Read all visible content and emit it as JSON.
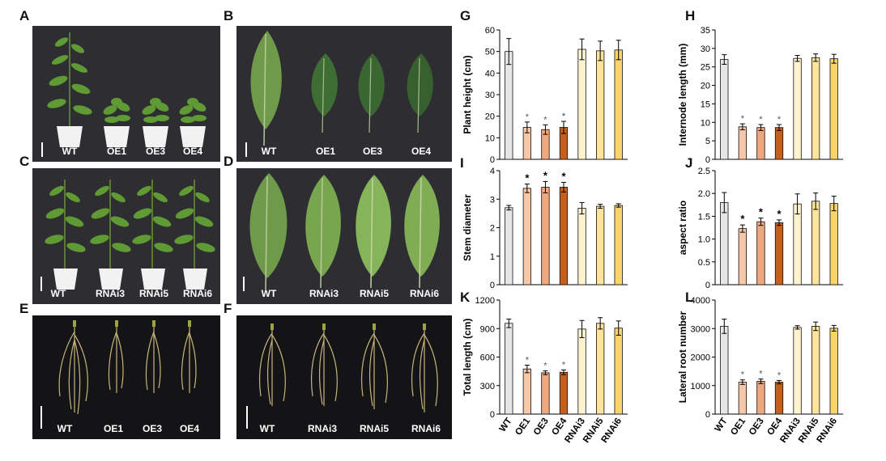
{
  "panels": {
    "A": {
      "letter": "A",
      "labels": [
        "WT",
        "OE1",
        "OE3",
        "OE4"
      ]
    },
    "B": {
      "letter": "B",
      "labels": [
        "WT",
        "OE1",
        "OE3",
        "OE4"
      ]
    },
    "C": {
      "letter": "C",
      "labels": [
        "WT",
        "RNAi3",
        "RNAi5",
        "RNAi6"
      ]
    },
    "D": {
      "letter": "D",
      "labels": [
        "WT",
        "RNAi3",
        "RNAi5",
        "RNAi6"
      ]
    },
    "E": {
      "letter": "E",
      "labels": [
        "WT",
        "OE1",
        "OE3",
        "OE4"
      ]
    },
    "F": {
      "letter": "F",
      "labels": [
        "WT",
        "RNAi3",
        "RNAi5",
        "RNAi6"
      ]
    }
  },
  "colors": {
    "WT": "#e6e6e6",
    "OE1": "#f6c7a8",
    "OE3": "#efa77d",
    "OE4": "#c4601b",
    "RNAi3": "#fff3cd",
    "RNAi5": "#fde49a",
    "RNAi6": "#f8d46a",
    "star_light": "#555555",
    "star_dark": "#1f3a8a"
  },
  "chart_data": [
    {
      "id": "G",
      "letter": "G",
      "type": "bar",
      "ylabel": "Plant height (cm)",
      "categories": [
        "WT",
        "OE1",
        "OE3",
        "OE4",
        "RNAi3",
        "RNAi5",
        "RNAi6"
      ],
      "values": [
        50,
        14.8,
        13.8,
        14.8,
        51,
        50.3,
        50.7
      ],
      "errors": [
        6,
        2.5,
        2.2,
        2.8,
        4.8,
        4.5,
        4.5
      ],
      "significant": [
        false,
        true,
        true,
        true,
        false,
        false,
        false
      ],
      "ylim": [
        0,
        60
      ],
      "yticks": [
        "0",
        "10",
        "20",
        "30",
        "40",
        "50",
        "60"
      ],
      "stars": [
        "",
        "*",
        "*",
        "*",
        "",
        "",
        ""
      ],
      "show_x": false
    },
    {
      "id": "H",
      "letter": "H",
      "type": "bar",
      "ylabel": "Internode length (mm)",
      "categories": [
        "WT",
        "OE1",
        "OE3",
        "OE4",
        "RNAi3",
        "RNAi5",
        "RNAi6"
      ],
      "values": [
        27,
        8.8,
        8.6,
        8.6,
        27.3,
        27.5,
        27.2
      ],
      "errors": [
        1.3,
        0.8,
        0.8,
        0.8,
        0.8,
        1,
        1.2
      ],
      "significant": [
        false,
        true,
        true,
        true,
        false,
        false,
        false
      ],
      "ylim": [
        0,
        35
      ],
      "yticks": [
        "0",
        "5",
        "10",
        "15",
        "20",
        "25",
        "30",
        "35"
      ],
      "stars": [
        "",
        "*",
        "*",
        "*",
        "",
        "",
        ""
      ],
      "show_x": false
    },
    {
      "id": "I",
      "letter": "I",
      "type": "bar",
      "ylabel": "Stem diameter",
      "categories": [
        "WT",
        "OE1",
        "OE3",
        "OE4",
        "RNAi3",
        "RNAi5",
        "RNAi6"
      ],
      "values": [
        2.7,
        3.38,
        3.42,
        3.42,
        2.68,
        2.75,
        2.78
      ],
      "errors": [
        0.08,
        0.15,
        0.2,
        0.17,
        0.2,
        0.07,
        0.06
      ],
      "significant": [
        false,
        true,
        true,
        true,
        false,
        false,
        false
      ],
      "ylim": [
        0,
        4
      ],
      "yticks": [
        "0",
        "1",
        "2",
        "3",
        "4"
      ],
      "stars": [
        "",
        "*",
        "*",
        "*",
        "",
        "",
        ""
      ],
      "show_x": false
    },
    {
      "id": "J",
      "letter": "J",
      "type": "bar",
      "ylabel": "aspect ratio",
      "categories": [
        "WT",
        "OE1",
        "OE3",
        "OE4",
        "RNAi3",
        "RNAi5",
        "RNAi6"
      ],
      "values": [
        1.8,
        1.23,
        1.38,
        1.36,
        1.77,
        1.83,
        1.78
      ],
      "errors": [
        0.22,
        0.08,
        0.08,
        0.06,
        0.22,
        0.18,
        0.16
      ],
      "significant": [
        false,
        true,
        true,
        true,
        false,
        false,
        false
      ],
      "ylim": [
        0,
        2.5
      ],
      "yticks": [
        "0",
        "0.5",
        "1.0",
        "1.5",
        "2.0",
        "2.5"
      ],
      "stars": [
        "",
        "*",
        "*",
        "*",
        "",
        "",
        ""
      ],
      "show_x": false
    },
    {
      "id": "K",
      "letter": "K",
      "type": "bar",
      "ylabel": "Total length (cm)",
      "categories": [
        "WT",
        "OE1",
        "OE3",
        "OE4",
        "RNAi3",
        "RNAi5",
        "RNAi6"
      ],
      "values": [
        955,
        475,
        435,
        440,
        895,
        955,
        905
      ],
      "errors": [
        45,
        40,
        20,
        25,
        90,
        60,
        75
      ],
      "significant": [
        false,
        true,
        true,
        true,
        false,
        false,
        false
      ],
      "ylim": [
        0,
        1200
      ],
      "yticks": [
        "0",
        "300",
        "600",
        "900",
        "1200"
      ],
      "stars": [
        "",
        "*",
        "*",
        "*",
        "",
        "",
        ""
      ],
      "show_x": true
    },
    {
      "id": "L",
      "letter": "L",
      "type": "bar",
      "ylabel": "Lateral root number",
      "categories": [
        "WT",
        "OE1",
        "OE3",
        "OE4",
        "RNAi3",
        "RNAi5",
        "RNAi6"
      ],
      "values": [
        3080,
        1120,
        1150,
        1120,
        3040,
        3080,
        3010
      ],
      "errors": [
        250,
        80,
        80,
        60,
        60,
        150,
        100
      ],
      "significant": [
        false,
        true,
        true,
        true,
        false,
        false,
        false
      ],
      "ylim": [
        0,
        4000
      ],
      "yticks": [
        "0",
        "1000",
        "2000",
        "3000",
        "4000"
      ],
      "stars": [
        "",
        "*",
        "*",
        "*",
        "",
        "",
        ""
      ],
      "show_x": true
    }
  ]
}
